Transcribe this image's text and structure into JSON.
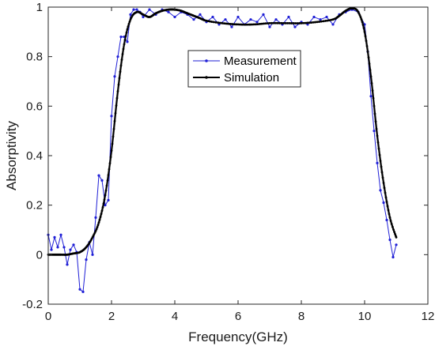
{
  "chart_data": {
    "type": "line",
    "title": "",
    "xlabel": "Frequency(GHz)",
    "ylabel": "Absorptivity",
    "xlim": [
      0,
      12
    ],
    "ylim": [
      -0.2,
      1
    ],
    "xticks": [
      0,
      2,
      4,
      6,
      8,
      10,
      12
    ],
    "yticks": [
      -0.2,
      0,
      0.2,
      0.4,
      0.6,
      0.8,
      1
    ],
    "xtick_labels": [
      "0",
      "2",
      "4",
      "6",
      "8",
      "10",
      "12"
    ],
    "ytick_labels": [
      "-0.2",
      "0",
      "0.2",
      "0.4",
      "0.6",
      "0.8",
      "1"
    ],
    "grid": false,
    "legend_position": "top-center",
    "series": [
      {
        "name": "Measurement",
        "color": "#1f1fd6",
        "marker": "dot",
        "x": [
          0.0,
          0.1,
          0.2,
          0.3,
          0.4,
          0.5,
          0.6,
          0.7,
          0.8,
          0.9,
          1.0,
          1.1,
          1.2,
          1.3,
          1.4,
          1.5,
          1.6,
          1.7,
          1.8,
          1.9,
          2.0,
          2.1,
          2.2,
          2.3,
          2.4,
          2.5,
          2.6,
          2.7,
          2.8,
          2.9,
          3.0,
          3.2,
          3.4,
          3.6,
          3.8,
          4.0,
          4.2,
          4.4,
          4.6,
          4.8,
          5.0,
          5.2,
          5.4,
          5.6,
          5.8,
          6.0,
          6.2,
          6.4,
          6.6,
          6.8,
          7.0,
          7.2,
          7.4,
          7.6,
          7.8,
          8.0,
          8.2,
          8.4,
          8.6,
          8.8,
          9.0,
          9.2,
          9.4,
          9.6,
          9.8,
          10.0,
          10.1,
          10.2,
          10.3,
          10.4,
          10.5,
          10.6,
          10.7,
          10.8,
          10.9,
          11.0
        ],
        "y": [
          0.08,
          0.02,
          0.07,
          0.03,
          0.08,
          0.03,
          -0.04,
          0.02,
          0.04,
          0.01,
          -0.14,
          -0.15,
          -0.02,
          0.05,
          0.0,
          0.15,
          0.32,
          0.3,
          0.2,
          0.22,
          0.56,
          0.72,
          0.8,
          0.88,
          0.88,
          0.86,
          0.97,
          0.99,
          0.99,
          0.98,
          0.96,
          0.99,
          0.97,
          0.99,
          0.98,
          0.96,
          0.98,
          0.97,
          0.95,
          0.97,
          0.94,
          0.96,
          0.93,
          0.95,
          0.92,
          0.96,
          0.93,
          0.95,
          0.94,
          0.97,
          0.92,
          0.95,
          0.93,
          0.96,
          0.92,
          0.94,
          0.93,
          0.96,
          0.95,
          0.96,
          0.93,
          0.97,
          0.98,
          0.99,
          0.98,
          0.93,
          0.82,
          0.64,
          0.5,
          0.37,
          0.26,
          0.21,
          0.14,
          0.06,
          -0.01,
          0.04
        ]
      },
      {
        "name": "Simulation",
        "color": "#000000",
        "marker": "dot",
        "x": [
          0.0,
          0.2,
          0.4,
          0.6,
          0.8,
          1.0,
          1.2,
          1.4,
          1.6,
          1.8,
          2.0,
          2.2,
          2.4,
          2.6,
          2.8,
          3.0,
          3.2,
          3.4,
          3.6,
          3.8,
          4.0,
          4.2,
          4.4,
          4.6,
          4.8,
          5.0,
          5.5,
          6.0,
          6.5,
          7.0,
          7.5,
          8.0,
          8.5,
          9.0,
          9.2,
          9.4,
          9.6,
          9.8,
          10.0,
          10.2,
          10.4,
          10.6,
          10.8,
          11.0
        ],
        "y": [
          0.0,
          0.0,
          0.0,
          0.0,
          0.005,
          0.01,
          0.03,
          0.07,
          0.13,
          0.24,
          0.42,
          0.66,
          0.85,
          0.95,
          0.98,
          0.97,
          0.96,
          0.975,
          0.985,
          0.99,
          0.99,
          0.985,
          0.975,
          0.965,
          0.955,
          0.945,
          0.935,
          0.93,
          0.93,
          0.935,
          0.935,
          0.935,
          0.94,
          0.95,
          0.965,
          0.985,
          0.995,
          0.98,
          0.9,
          0.72,
          0.48,
          0.29,
          0.15,
          0.07
        ]
      }
    ]
  }
}
